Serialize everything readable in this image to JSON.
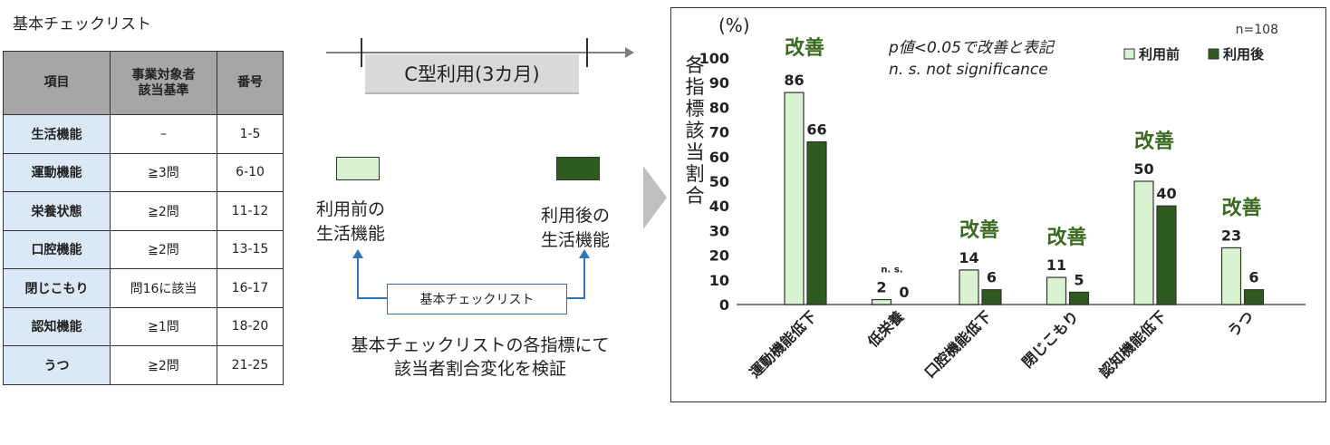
{
  "checklist": {
    "title": "基本チェックリスト",
    "headers": [
      "項目",
      "事業対象者\n該当基準",
      "番号"
    ],
    "rows": [
      {
        "item": "生活機能",
        "criterion": "–",
        "numbers": "1-5"
      },
      {
        "item": "運動機能",
        "criterion": "≧3問",
        "numbers": "6-10"
      },
      {
        "item": "栄養状態",
        "criterion": "≧2問",
        "numbers": "11-12"
      },
      {
        "item": "口腔機能",
        "criterion": "≧2問",
        "numbers": "13-15"
      },
      {
        "item": "閉じこもり",
        "criterion": "問16に該当",
        "numbers": "16-17"
      },
      {
        "item": "認知機能",
        "criterion": "≧1問",
        "numbers": "18-20"
      },
      {
        "item": "うつ",
        "criterion": "≧2問",
        "numbers": "21-25"
      }
    ]
  },
  "flow": {
    "period": "C型利用(3カ月)",
    "before_label_1": "利用前の",
    "before_label_2": "生活機能",
    "after_label_1": "利用後の",
    "after_label_2": "生活機能",
    "checklist_box": "基本チェックリスト",
    "verify_1": "基本チェックリストの各指標にて",
    "verify_2": "該当者割合変化を検証"
  },
  "colors": {
    "before": "#d9f2d0",
    "after": "#2f5b1f",
    "improve_text": "#3a6b21",
    "arrow_blue": "#2e75b6",
    "arrow_gray": "#bfbfbf"
  },
  "chart_data": {
    "type": "bar",
    "unit_label": "(%)",
    "ylabel": "各指標該当割合",
    "n_label": "n=108",
    "note_1": "p値<0.05で改善と表記",
    "note_2": "n. s. not significance",
    "ylim": [
      0,
      100
    ],
    "yticks": [
      0,
      10,
      20,
      30,
      40,
      50,
      60,
      70,
      80,
      90,
      100
    ],
    "legend_position": "top-right",
    "categories": [
      "運動機能低下",
      "低栄養",
      "口腔機能低下",
      "閉じこもり",
      "認知機能低下",
      "うつ"
    ],
    "series": [
      {
        "name": "利用前",
        "values": [
          86,
          2,
          14,
          11,
          50,
          23
        ]
      },
      {
        "name": "利用後",
        "values": [
          66,
          0,
          6,
          5,
          40,
          6
        ]
      }
    ],
    "annotations": [
      "改善",
      "n. s.",
      "改善",
      "改善",
      "改善",
      "改善"
    ]
  }
}
